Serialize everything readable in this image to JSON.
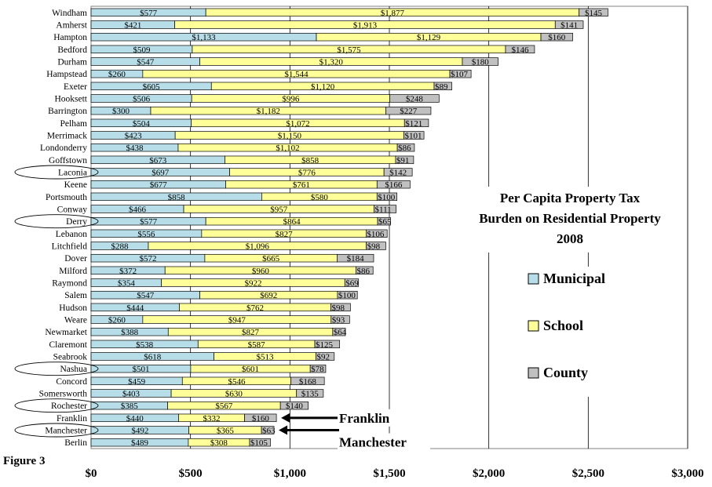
{
  "chart_data": {
    "type": "bar",
    "orientation": "horizontal",
    "stacked": true,
    "title": "Per Capita Property Tax Burden on Residential Property 2008",
    "title_lines": [
      "Per Capita Property Tax",
      "Burden on Residential Property",
      "2008"
    ],
    "figure_label": "Figure 3",
    "xlim": [
      0,
      3000
    ],
    "x_ticks": [
      0,
      500,
      1000,
      1500,
      2000,
      2500,
      3000
    ],
    "x_tick_labels": [
      "$0",
      "$500",
      "$1,000",
      "$1,500",
      "$2,000",
      "$2,500",
      "$3,000"
    ],
    "grid": "vertical major gridlines",
    "legend_position": "right",
    "categories": [
      "Windham",
      "Amherst",
      "Hampton",
      "Bedford",
      "Durham",
      "Hampstead",
      "Exeter",
      "Hooksett",
      "Barrington",
      "Pelham",
      "Merrimack",
      "Londonderry",
      "Goffstown",
      "Laconia",
      "Keene",
      "Portsmouth",
      "Conway",
      "Derry",
      "Lebanon",
      "Litchfield",
      "Dover",
      "Milford",
      "Raymond",
      "Salem",
      "Hudson",
      "Weare",
      "Newmarket",
      "Claremont",
      "Seabrook",
      "Nashua",
      "Concord",
      "Somersworth",
      "Rochester",
      "Franklin",
      "Manchester",
      "Berlin"
    ],
    "series": [
      {
        "name": "Municipal",
        "color": "#b7dee8",
        "values": [
          577,
          421,
          1133,
          509,
          547,
          260,
          605,
          506,
          300,
          504,
          423,
          438,
          673,
          697,
          677,
          858,
          466,
          577,
          556,
          288,
          572,
          372,
          354,
          547,
          444,
          260,
          388,
          538,
          618,
          501,
          459,
          403,
          385,
          440,
          492,
          489
        ],
        "labels": [
          "$577",
          "$421",
          "$1,133",
          "$509",
          "$547",
          "$260",
          "$605",
          "$506",
          "$300",
          "$504",
          "$423",
          "$438",
          "$673",
          "$697",
          "$677",
          "$858",
          "$466",
          "$577",
          "$556",
          "$288",
          "$572",
          "$372",
          "$354",
          "$547",
          "$444",
          "$260",
          "$388",
          "$538",
          "$618",
          "$501",
          "$459",
          "$403",
          "$385",
          "$440",
          "$492",
          "$489"
        ]
      },
      {
        "name": "School",
        "color": "#ffff99",
        "values": [
          1877,
          1913,
          1129,
          1575,
          1320,
          1544,
          1120,
          996,
          1182,
          1072,
          1150,
          1102,
          858,
          776,
          761,
          580,
          957,
          864,
          827,
          1096,
          665,
          960,
          922,
          692,
          762,
          947,
          827,
          587,
          513,
          601,
          546,
          630,
          567,
          332,
          365,
          308
        ],
        "labels": [
          "$1,877",
          "$1,913",
          "$1,129",
          "$1,575",
          "$1,320",
          "$1,544",
          "$1,120",
          "$996",
          "$1,182",
          "$1,072",
          "$1,150",
          "$1,102",
          "$858",
          "$776",
          "$761",
          "$580",
          "$957",
          "$864",
          "$827",
          "$1,096",
          "$665",
          "$960",
          "$922",
          "$692",
          "$762",
          "$947",
          "$827",
          "$587",
          "$513",
          "$601",
          "$546",
          "$630",
          "$567",
          "$332",
          "$365",
          "$308"
        ]
      },
      {
        "name": "County",
        "color": "#c0c0c0",
        "values": [
          145,
          141,
          160,
          146,
          180,
          107,
          89,
          248,
          227,
          121,
          101,
          86,
          91,
          142,
          166,
          100,
          111,
          65,
          106,
          98,
          184,
          86,
          69,
          100,
          98,
          93,
          64,
          125,
          92,
          78,
          168,
          135,
          140,
          160,
          63,
          105
        ],
        "labels": [
          "$145",
          "$141",
          "$160",
          "$146",
          "$180",
          "$107",
          "$89",
          "$248",
          "$227",
          "$121",
          "$101",
          "$86",
          "$91",
          "$142",
          "$166",
          "$100",
          "$111",
          "$65",
          "$106",
          "$98",
          "$184",
          "$86",
          "$69",
          "$100",
          "$98",
          "$93",
          "$64",
          "$125",
          "$92",
          "$78",
          "$168",
          "$135",
          "$140",
          "$160",
          "$63",
          "$105"
        ]
      }
    ],
    "circled_categories": [
      "Laconia",
      "Derry",
      "Nashua",
      "Rochester",
      "Manchester"
    ],
    "annotations": [
      {
        "text": "Franklin",
        "points_to": "Franklin"
      },
      {
        "text": "Manchester",
        "points_to": "Manchester"
      }
    ]
  }
}
